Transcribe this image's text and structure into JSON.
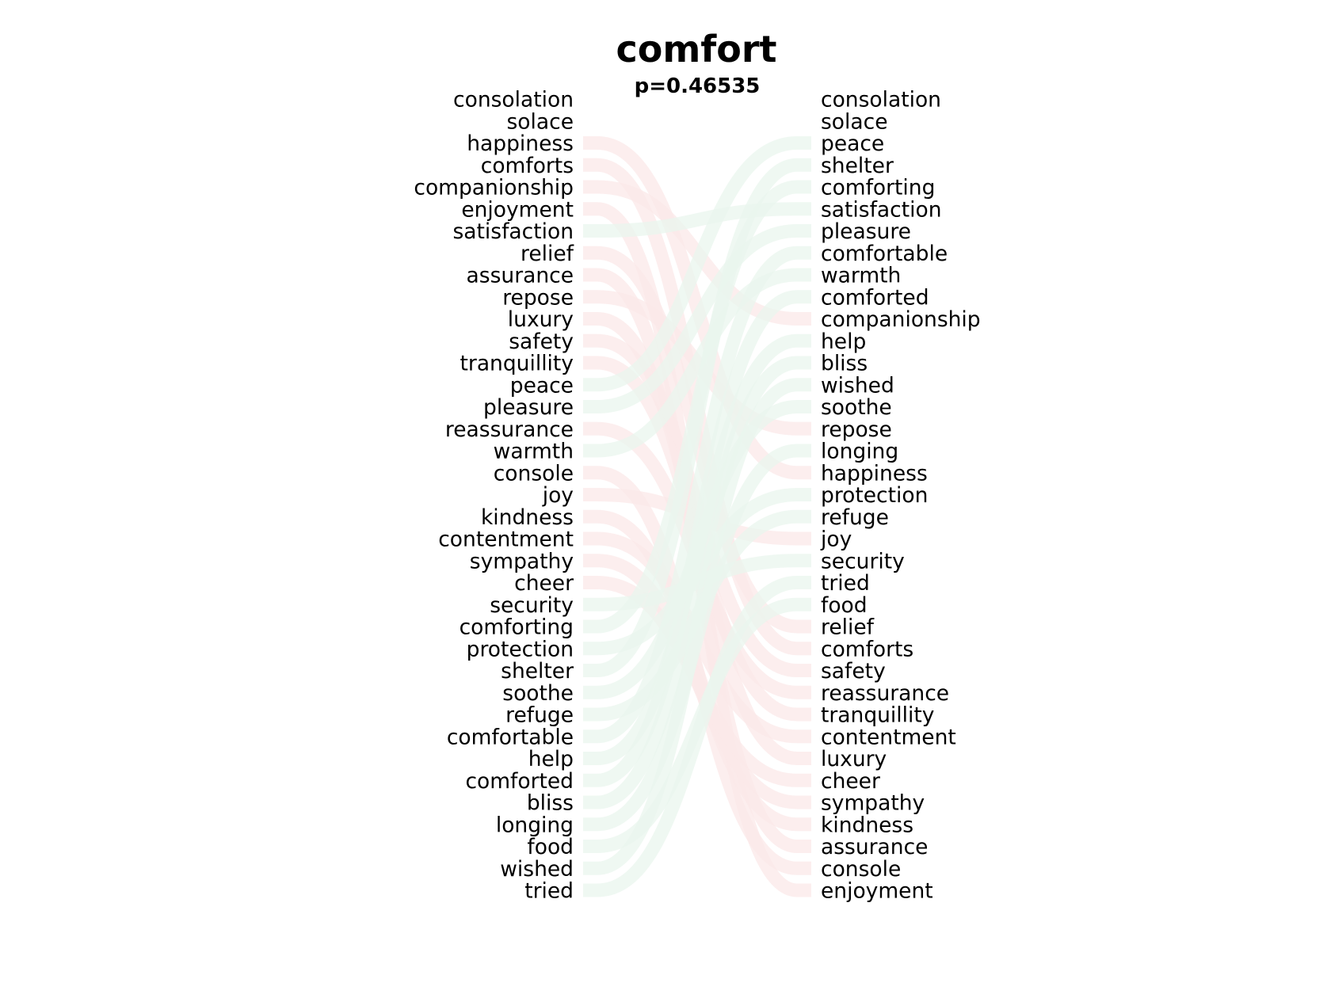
{
  "chart_data": {
    "type": "slopegraph",
    "title": "comfort",
    "subtitle": "p=0.46535",
    "left_list": [
      "consolation",
      "solace",
      "happiness",
      "comforts",
      "companionship",
      "enjoyment",
      "satisfaction",
      "relief",
      "assurance",
      "repose",
      "luxury",
      "safety",
      "tranquillity",
      "peace",
      "pleasure",
      "reassurance",
      "warmth",
      "console",
      "joy",
      "kindness",
      "contentment",
      "sympathy",
      "cheer",
      "security",
      "comforting",
      "protection",
      "shelter",
      "soothe",
      "refuge",
      "comfortable",
      "help",
      "comforted",
      "bliss",
      "longing",
      "food",
      "wished",
      "tried"
    ],
    "right_list": [
      "consolation",
      "solace",
      "peace",
      "shelter",
      "comforting",
      "satisfaction",
      "pleasure",
      "comfortable",
      "warmth",
      "comforted",
      "companionship",
      "help",
      "bliss",
      "wished",
      "soothe",
      "repose",
      "longing",
      "happiness",
      "protection",
      "refuge",
      "joy",
      "security",
      "tried",
      "food",
      "relief",
      "comforts",
      "safety",
      "reassurance",
      "tranquillity",
      "contentment",
      "luxury",
      "cheer",
      "sympathy",
      "kindness",
      "assurance",
      "console",
      "enjoyment"
    ],
    "colors": {
      "moved_up": "#e9f5ee",
      "moved_down": "#fbe8e8",
      "mid": "#fdfbe6",
      "text": "#000000"
    }
  }
}
